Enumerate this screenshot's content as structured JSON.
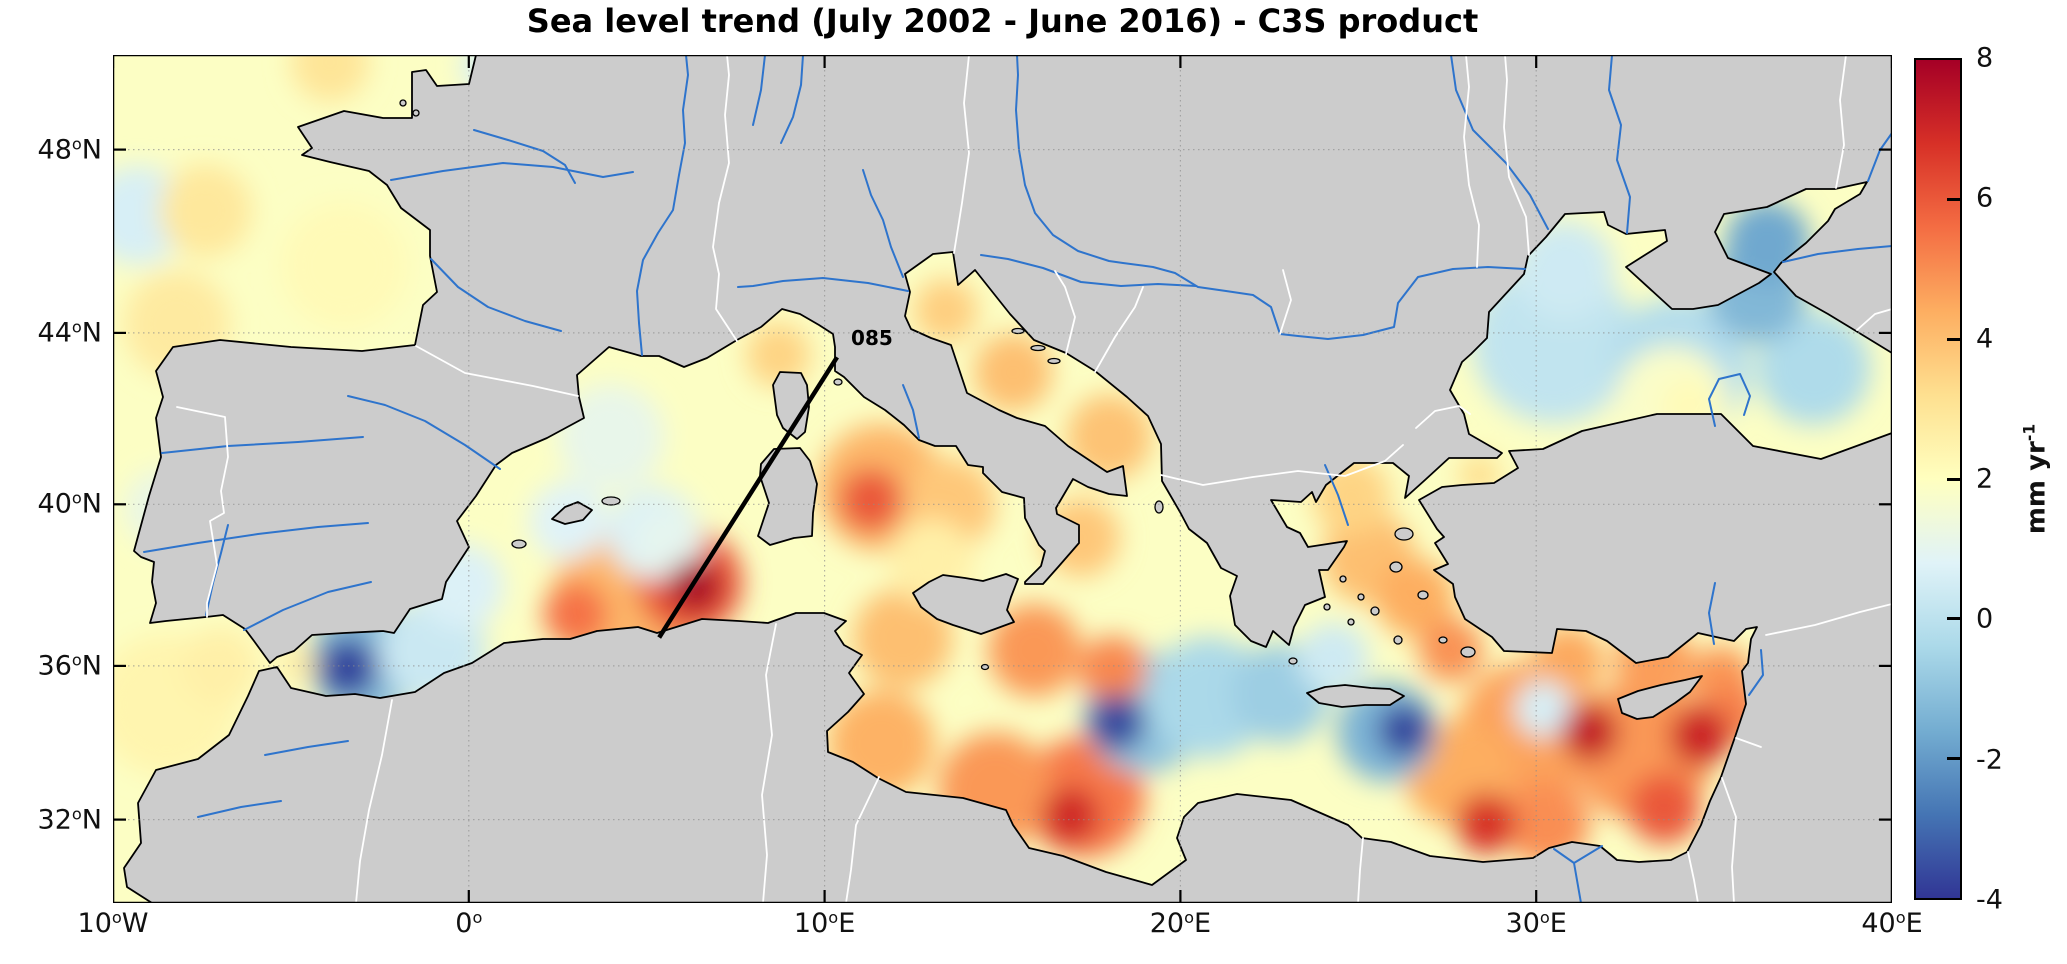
{
  "title": "Sea level trend (July 2002 - June 2016) - C3S product",
  "map": {
    "bounds": {
      "lon_min": -10,
      "lon_max": 40,
      "lat_min": 29.75,
      "lat_max": 49.95
    },
    "degree_mark": "o",
    "lat_ticks": [
      {
        "value": 48,
        "label": "48",
        "suffix": "N"
      },
      {
        "value": 44,
        "label": "44",
        "suffix": "N"
      },
      {
        "value": 40,
        "label": "40",
        "suffix": "N"
      },
      {
        "value": 36,
        "label": "36",
        "suffix": "N"
      },
      {
        "value": 32,
        "label": "32",
        "suffix": "N"
      }
    ],
    "lon_ticks": [
      {
        "value": -10,
        "label": "10",
        "suffix": "W"
      },
      {
        "value": 0,
        "label": "0",
        "suffix": ""
      },
      {
        "value": 10,
        "label": "10",
        "suffix": "E"
      },
      {
        "value": 20,
        "label": "20",
        "suffix": "E"
      },
      {
        "value": 30,
        "label": "30",
        "suffix": "E"
      },
      {
        "value": 40,
        "label": "40",
        "suffix": "E"
      }
    ],
    "colors": {
      "land": "#cccccc",
      "coast": "#000000",
      "river": "#2e74cc",
      "country_border": "#ffffff",
      "grid": "#8c8c8c",
      "sea_base": "#f9f2c0",
      "frame": "#000000",
      "track": "#000000"
    }
  },
  "colorbar": {
    "min": -4,
    "max": 8,
    "ticks": [
      8,
      6,
      4,
      2,
      0,
      -2,
      -4
    ],
    "inner_ticks": [
      6,
      4,
      2,
      0,
      -2
    ],
    "unit_text": "mm yr",
    "unit_sup": "-1",
    "stops": [
      {
        "value": 8,
        "color": "#a50026"
      },
      {
        "value": 6.8,
        "color": "#d73027"
      },
      {
        "value": 5.6,
        "color": "#f46d43"
      },
      {
        "value": 4.4,
        "color": "#fdae61"
      },
      {
        "value": 3.2,
        "color": "#fee090"
      },
      {
        "value": 2,
        "color": "#ffffbf"
      },
      {
        "value": 0.8,
        "color": "#e0f3f8"
      },
      {
        "value": -0.4,
        "color": "#abd9e9"
      },
      {
        "value": -1.6,
        "color": "#74add1"
      },
      {
        "value": -2.8,
        "color": "#4575b4"
      },
      {
        "value": -4,
        "color": "#313695"
      }
    ]
  },
  "chart_data": {
    "type": "heatmap",
    "title": "Sea level trend (July 2002 - June 2016) - C3S product",
    "units": "mm yr-1",
    "value_range": [
      -4,
      8
    ],
    "lon_range": [
      -10,
      40
    ],
    "lat_range": [
      29.75,
      49.95
    ],
    "background_trend": 1.9,
    "track": {
      "label": "085",
      "start_lon": 10.35,
      "start_lat": 43.45,
      "end_lon": 5.35,
      "end_lat": 36.72
    },
    "regions": [
      {
        "name": "atlantic-blue-nw",
        "lon": -9.3,
        "lat": 46.6,
        "trend": 0.6,
        "radius_deg": 1.4
      },
      {
        "name": "atlantic-orange-mid",
        "lon": -7.4,
        "lat": 46.7,
        "trend": 2.9,
        "radius_deg": 1.3
      },
      {
        "name": "channel-orange",
        "lon": -3.9,
        "lat": 49.8,
        "trend": 3.0,
        "radius_deg": 1.1
      },
      {
        "name": "channel-blue",
        "lon": 0.6,
        "lat": 49.7,
        "trend": 0.6,
        "radius_deg": 0.8
      },
      {
        "name": "biscay-pale",
        "lon": -3.5,
        "lat": 45.5,
        "trend": 2.2,
        "radius_deg": 1.8
      },
      {
        "name": "atlantic-orange-sw",
        "lon": -8.2,
        "lat": 44.2,
        "trend": 2.8,
        "radius_deg": 1.5
      },
      {
        "name": "portugal-blue",
        "lon": -8.6,
        "lat": 39.9,
        "trend": 1.2,
        "radius_deg": 1.1
      },
      {
        "name": "atlantic-yellow-s",
        "lon": -8.5,
        "lat": 35.0,
        "trend": 2.4,
        "radius_deg": 2.0
      },
      {
        "name": "cadiz-orange",
        "lon": -7.0,
        "lat": 36.0,
        "trend": 2.6,
        "radius_deg": 1.1
      },
      {
        "name": "alboran-blue-halo",
        "lon": -2.9,
        "lat": 36.1,
        "trend": -1.2,
        "radius_deg": 1.6
      },
      {
        "name": "alboran-navy",
        "lon": -3.4,
        "lat": 35.95,
        "trend": -3.7,
        "radius_deg": 0.85
      },
      {
        "name": "alboran-pale-east",
        "lon": -1.0,
        "lat": 36.4,
        "trend": 0.3,
        "radius_deg": 1.5
      },
      {
        "name": "alboran-yellow-spot",
        "lon": -4.8,
        "lat": 36.05,
        "trend": 2.8,
        "radius_deg": 0.5
      },
      {
        "name": "spain-se-blue",
        "lon": -0.2,
        "lat": 38.0,
        "trend": 0.7,
        "radius_deg": 1.2
      },
      {
        "name": "balearic-blue-w",
        "lon": 2.8,
        "lat": 39.6,
        "trend": 0.8,
        "radius_deg": 1.1
      },
      {
        "name": "balearic-blue-e",
        "lon": 5.2,
        "lat": 39.3,
        "trend": 0.7,
        "radius_deg": 1.3
      },
      {
        "name": "lion-pale-blue",
        "lon": 4.0,
        "lat": 41.6,
        "trend": 1.1,
        "radius_deg": 1.5
      },
      {
        "name": "ligurian-orange",
        "lon": 8.7,
        "lat": 43.5,
        "trend": 3.5,
        "radius_deg": 0.9
      },
      {
        "name": "algerian-halo",
        "lon": 4.5,
        "lat": 37.6,
        "trend": 4.2,
        "radius_deg": 2.2
      },
      {
        "name": "algerian-red-west",
        "lon": 3.0,
        "lat": 37.3,
        "trend": 5.5,
        "radius_deg": 0.9
      },
      {
        "name": "algerian-red-main",
        "lon": 6.2,
        "lat": 38.1,
        "trend": 6.0,
        "radius_deg": 1.5
      },
      {
        "name": "algerian-red-core",
        "lon": 6.35,
        "lat": 38.0,
        "trend": 7.9,
        "radius_deg": 0.75
      },
      {
        "name": "sardinia-w-blue",
        "lon": 5.6,
        "lat": 39.1,
        "trend": 1.0,
        "radius_deg": 1.0
      },
      {
        "name": "tyrrhenian-halo",
        "lon": 11.6,
        "lat": 40.4,
        "trend": 4.2,
        "radius_deg": 1.8
      },
      {
        "name": "tyrrhenian-core",
        "lon": 11.3,
        "lat": 40.1,
        "trend": 6.0,
        "radius_deg": 0.9
      },
      {
        "name": "naples-orange",
        "lon": 13.5,
        "lat": 40.0,
        "trend": 3.8,
        "radius_deg": 1.3
      },
      {
        "name": "sicily-n-pale",
        "lon": 13.0,
        "lat": 38.6,
        "trend": 2.6,
        "radius_deg": 1.2
      },
      {
        "name": "adriatic-north",
        "lon": 13.4,
        "lat": 44.5,
        "trend": 3.6,
        "radius_deg": 0.9
      },
      {
        "name": "adriatic-mid",
        "lon": 15.3,
        "lat": 43.1,
        "trend": 4.0,
        "radius_deg": 1.1
      },
      {
        "name": "adriatic-south",
        "lon": 18.0,
        "lat": 41.6,
        "trend": 3.9,
        "radius_deg": 1.2
      },
      {
        "name": "taranto-orange",
        "lon": 17.2,
        "lat": 39.2,
        "trend": 3.8,
        "radius_deg": 1.1
      },
      {
        "name": "sicily-channel",
        "lon": 12.2,
        "lat": 36.7,
        "trend": 4.0,
        "radius_deg": 1.4
      },
      {
        "name": "gabes-orange",
        "lon": 11.6,
        "lat": 34.0,
        "trend": 4.3,
        "radius_deg": 1.5
      },
      {
        "name": "sirte-w-orange",
        "lon": 14.8,
        "lat": 32.8,
        "trend": 4.8,
        "radius_deg": 1.6
      },
      {
        "name": "sidra-red-halo",
        "lon": 17.3,
        "lat": 32.6,
        "trend": 5.4,
        "radius_deg": 1.7
      },
      {
        "name": "sidra-red-core",
        "lon": 16.9,
        "lat": 32.1,
        "trend": 7.0,
        "radius_deg": 0.8
      },
      {
        "name": "ionian-w-orange",
        "lon": 15.9,
        "lat": 36.4,
        "trend": 4.8,
        "radius_deg": 1.3
      },
      {
        "name": "ionian-ne-orange",
        "lon": 18.1,
        "lat": 35.9,
        "trend": 5.1,
        "radius_deg": 0.95
      },
      {
        "name": "ionian-blue-halo",
        "lon": 19.0,
        "lat": 34.8,
        "trend": -1.0,
        "radius_deg": 1.7
      },
      {
        "name": "ionian-navy",
        "lon": 18.2,
        "lat": 34.55,
        "trend": -3.6,
        "radius_deg": 0.8
      },
      {
        "name": "ionian-blue-mid",
        "lon": 20.8,
        "lat": 35.2,
        "trend": -0.4,
        "radius_deg": 1.7
      },
      {
        "name": "ionian-blue-east",
        "lon": 22.8,
        "lat": 35.3,
        "trend": -0.7,
        "radius_deg": 1.4
      },
      {
        "name": "crete-n-pale-blue",
        "lon": 24.3,
        "lat": 36.2,
        "trend": 0.4,
        "radius_deg": 1.0
      },
      {
        "name": "crete-se-halo",
        "lon": 25.8,
        "lat": 34.3,
        "trend": -1.4,
        "radius_deg": 1.4
      },
      {
        "name": "crete-se-navy",
        "lon": 26.3,
        "lat": 34.35,
        "trend": -3.7,
        "radius_deg": 0.75
      },
      {
        "name": "benghazi-red",
        "lon": 28.6,
        "lat": 31.9,
        "trend": 6.8,
        "radius_deg": 0.85
      },
      {
        "name": "alexandria-orange",
        "lon": 30.3,
        "lat": 31.9,
        "trend": 5.0,
        "radius_deg": 1.2
      },
      {
        "name": "aegean-orange-1",
        "lon": 25.3,
        "lat": 38.7,
        "trend": 4.0,
        "radius_deg": 1.3
      },
      {
        "name": "aegean-orange-2",
        "lon": 26.6,
        "lat": 37.7,
        "trend": 4.4,
        "radius_deg": 1.1
      },
      {
        "name": "north-aegean-orange",
        "lon": 24.8,
        "lat": 40.2,
        "trend": 3.5,
        "radius_deg": 1.1
      },
      {
        "name": "dodecanese-red",
        "lon": 27.6,
        "lat": 36.4,
        "trend": 4.9,
        "radius_deg": 0.9
      },
      {
        "name": "marmara-orange",
        "lon": 28.4,
        "lat": 40.7,
        "trend": 3.2,
        "radius_deg": 0.6
      },
      {
        "name": "levantine-field-w",
        "lon": 29.8,
        "lat": 34.3,
        "trend": 4.6,
        "radius_deg": 2.0
      },
      {
        "name": "levantine-field-e",
        "lon": 33.0,
        "lat": 33.8,
        "trend": 4.8,
        "radius_deg": 2.0
      },
      {
        "name": "cilicia-orange",
        "lon": 33.3,
        "lat": 36.1,
        "trend": 4.7,
        "radius_deg": 1.1
      },
      {
        "name": "antalya-orange",
        "lon": 30.9,
        "lat": 36.1,
        "trend": 4.5,
        "radius_deg": 1.0
      },
      {
        "name": "levantine-blue-spot",
        "lon": 30.2,
        "lat": 34.9,
        "trend": 0.6,
        "radius_deg": 0.8
      },
      {
        "name": "levantine-red-1",
        "lon": 31.5,
        "lat": 34.3,
        "trend": 7.3,
        "radius_deg": 0.8
      },
      {
        "name": "levantine-red-2",
        "lon": 34.6,
        "lat": 34.2,
        "trend": 7.1,
        "radius_deg": 0.85
      },
      {
        "name": "levantine-red-3",
        "lon": 33.6,
        "lat": 32.3,
        "trend": 6.0,
        "radius_deg": 1.0
      },
      {
        "name": "cyprus-e-orange",
        "lon": 35.2,
        "lat": 35.7,
        "trend": 4.8,
        "radius_deg": 0.9
      },
      {
        "name": "latakia-orange",
        "lon": 35.5,
        "lat": 34.8,
        "trend": 5.2,
        "radius_deg": 0.9
      },
      {
        "name": "herodotus-orange",
        "lon": 27.8,
        "lat": 33.2,
        "trend": 4.4,
        "radius_deg": 1.5
      },
      {
        "name": "blacksea-west",
        "lon": 30.5,
        "lat": 43.8,
        "trend": 0.1,
        "radius_deg": 2.3
      },
      {
        "name": "blacksea-mid",
        "lon": 34.0,
        "lat": 43.2,
        "trend": -0.2,
        "radius_deg": 2.0
      },
      {
        "name": "blacksea-east",
        "lon": 37.8,
        "lat": 43.2,
        "trend": -0.3,
        "radius_deg": 1.6
      },
      {
        "name": "blacksea-nw-shelf",
        "lon": 30.8,
        "lat": 45.4,
        "trend": 0.4,
        "radius_deg": 1.4
      },
      {
        "name": "azov-blue",
        "lon": 36.5,
        "lat": 46.0,
        "trend": -1.7,
        "radius_deg": 1.2
      },
      {
        "name": "crimea-e-blue",
        "lon": 36.2,
        "lat": 44.9,
        "trend": -1.3,
        "radius_deg": 1.4
      },
      {
        "name": "blacksea-yellow",
        "lon": 33.8,
        "lat": 42.4,
        "trend": 1.8,
        "radius_deg": 1.6
      },
      {
        "name": "blacksea-yellow-core",
        "lon": 34.3,
        "lat": 42.3,
        "trend": 2.2,
        "radius_deg": 0.8
      }
    ]
  }
}
